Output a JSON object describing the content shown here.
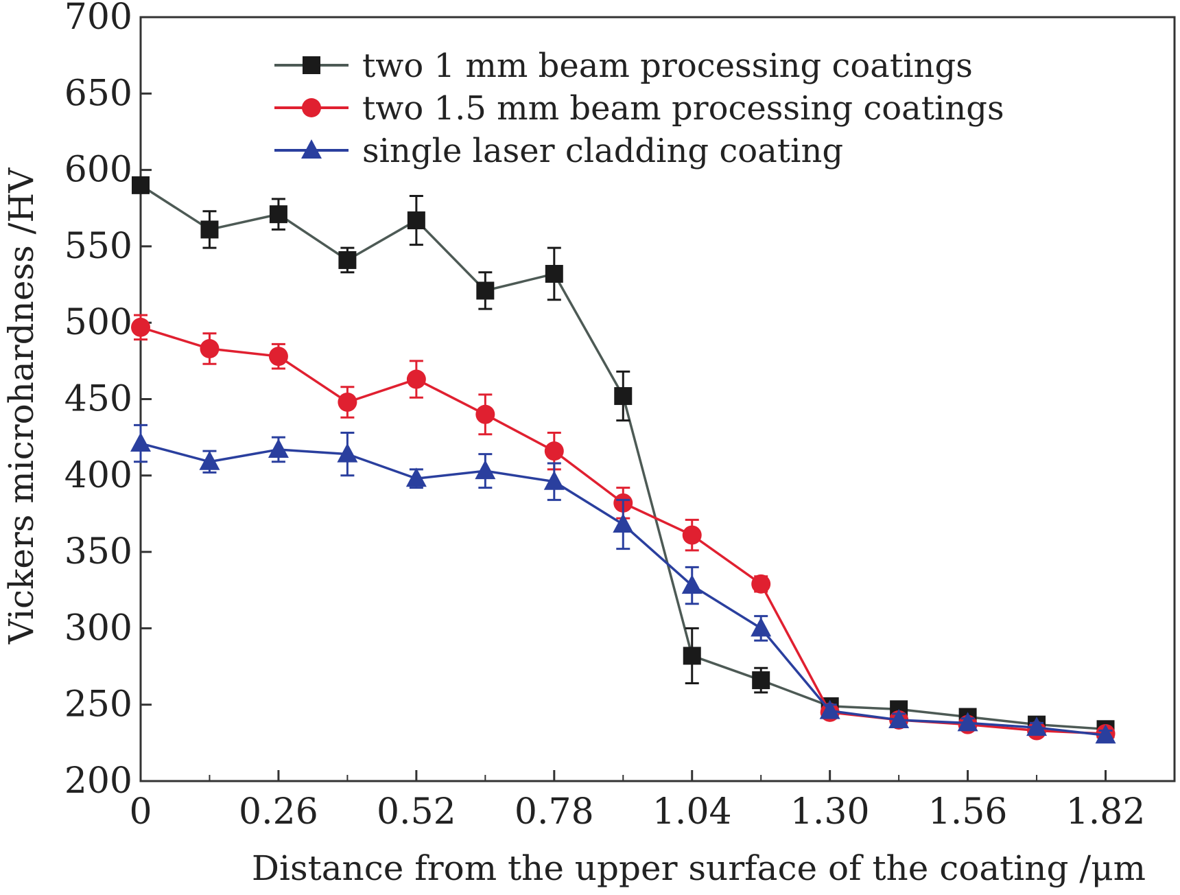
{
  "chart_data": {
    "type": "line",
    "title": "",
    "xlabel": "Distance from the upper surface of the coating /μm",
    "ylabel": "Vickers microhardness /HV",
    "xlim": [
      0,
      1.95
    ],
    "ylim": [
      200,
      700
    ],
    "xticks": [
      0,
      0.26,
      0.52,
      0.78,
      1.04,
      1.3,
      1.56,
      1.82
    ],
    "xtick_labels": [
      "0",
      "0.26",
      "0.52",
      "0.78",
      "1.04",
      "1.30",
      "1.56",
      "1.82"
    ],
    "yticks": [
      200,
      250,
      300,
      350,
      400,
      450,
      500,
      550,
      600,
      650,
      700
    ],
    "ytick_labels": [
      "200",
      "250",
      "300",
      "350",
      "400",
      "450",
      "500",
      "550",
      "600",
      "650",
      "700"
    ],
    "legend_position": "top-right",
    "series": [
      {
        "name": "two 1 mm beam processing coatings",
        "color": "#1a1a1a",
        "line_color": "#4d5a55",
        "marker": "square",
        "x": [
          0,
          0.13,
          0.26,
          0.39,
          0.52,
          0.65,
          0.78,
          0.91,
          1.04,
          1.17,
          1.3,
          1.43,
          1.56,
          1.69,
          1.82
        ],
        "y": [
          590,
          561,
          571,
          541,
          567,
          521,
          532,
          452,
          282,
          266,
          249,
          247,
          242,
          237,
          234
        ],
        "err": [
          0,
          12,
          10,
          8,
          16,
          12,
          17,
          16,
          18,
          8,
          4,
          4,
          3,
          3,
          3
        ]
      },
      {
        "name": "two 1.5 mm beam processing coatings",
        "color": "#e02030",
        "line_color": "#e02030",
        "marker": "circle",
        "x": [
          0,
          0.13,
          0.26,
          0.39,
          0.52,
          0.65,
          0.78,
          0.91,
          1.04,
          1.17,
          1.3,
          1.43,
          1.56,
          1.69,
          1.82
        ],
        "y": [
          497,
          483,
          478,
          448,
          463,
          440,
          416,
          382,
          361,
          329,
          245,
          240,
          237,
          233,
          231
        ],
        "err": [
          8,
          10,
          8,
          10,
          12,
          13,
          12,
          10,
          10,
          5,
          4,
          4,
          3,
          3,
          3
        ]
      },
      {
        "name": "single laser cladding coating",
        "color": "#2a3f9e",
        "line_color": "#2a3f9e",
        "marker": "triangle",
        "x": [
          0,
          0.13,
          0.26,
          0.39,
          0.52,
          0.65,
          0.78,
          0.91,
          1.04,
          1.17,
          1.3,
          1.43,
          1.56,
          1.69,
          1.82
        ],
        "y": [
          421,
          409,
          417,
          414,
          398,
          403,
          396,
          368,
          328,
          300,
          246,
          240,
          238,
          235,
          230
        ],
        "err": [
          12,
          7,
          8,
          14,
          6,
          11,
          12,
          16,
          12,
          8,
          4,
          4,
          3,
          3,
          3
        ]
      }
    ]
  }
}
